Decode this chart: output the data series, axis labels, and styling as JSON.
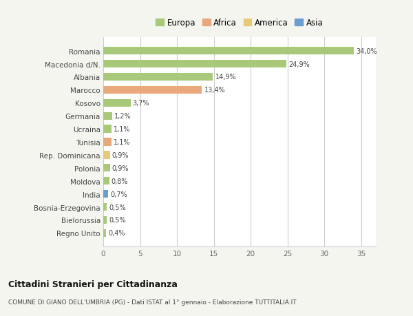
{
  "title": "Cittadini Stranieri per Cittadinanza",
  "subtitle": "COMUNE DI GIANO DELL'UMBRIA (PG) - Dati ISTAT al 1° gennaio - Elaborazione TUTTITALIA.IT",
  "categories": [
    "Romania",
    "Macedonia d/N.",
    "Albania",
    "Marocco",
    "Kosovo",
    "Germania",
    "Ucraina",
    "Tunisia",
    "Rep. Dominicana",
    "Polonia",
    "Moldova",
    "India",
    "Bosnia-Erzegovina",
    "Bielorussia",
    "Regno Unito"
  ],
  "values": [
    34.0,
    24.9,
    14.9,
    13.4,
    3.7,
    1.2,
    1.1,
    1.1,
    0.9,
    0.9,
    0.8,
    0.7,
    0.5,
    0.5,
    0.4
  ],
  "labels": [
    "34,0%",
    "24,9%",
    "14,9%",
    "13,4%",
    "3,7%",
    "1,2%",
    "1,1%",
    "1,1%",
    "0,9%",
    "0,9%",
    "0,8%",
    "0,7%",
    "0,5%",
    "0,5%",
    "0,4%"
  ],
  "continents": [
    "Europa",
    "Europa",
    "Europa",
    "Africa",
    "Europa",
    "Europa",
    "Europa",
    "Africa",
    "America",
    "Europa",
    "Europa",
    "Asia",
    "Europa",
    "Europa",
    "Europa"
  ],
  "continent_colors": {
    "Europa": "#a8c87a",
    "Africa": "#e8a87c",
    "America": "#e8c87a",
    "Asia": "#6a9ecf"
  },
  "legend_order": [
    "Europa",
    "Africa",
    "America",
    "Asia"
  ],
  "bg_color": "#f5f5f0",
  "plot_bg_color": "#ffffff",
  "xlim": [
    0,
    37
  ],
  "xticks": [
    0,
    5,
    10,
    15,
    20,
    25,
    30,
    35
  ]
}
